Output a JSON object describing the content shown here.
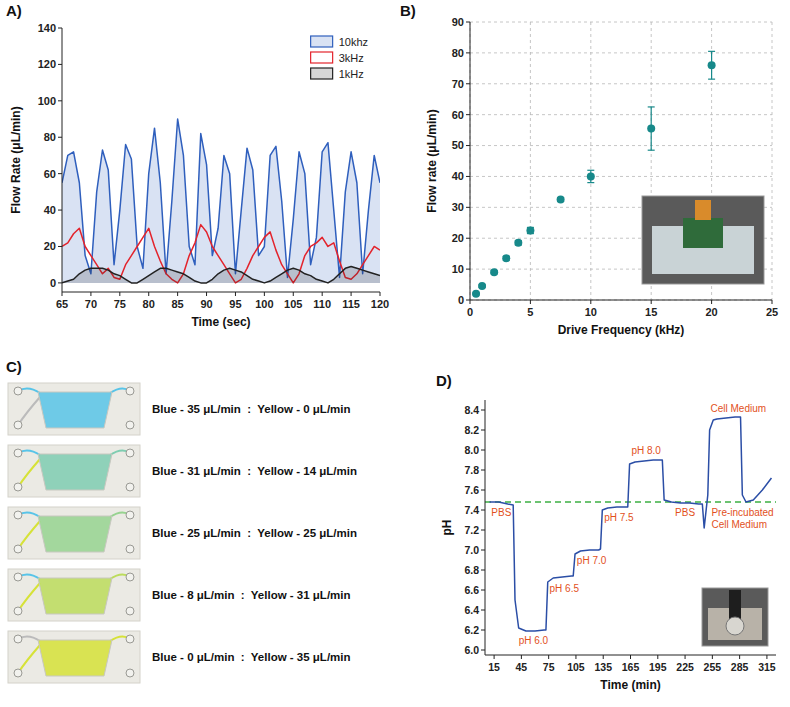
{
  "chart_data": [
    {
      "panel_label": "A)",
      "type": "line",
      "xlabel": "Time (sec)",
      "ylabel": "Flow Rate (μL/min)",
      "x": [
        65,
        66,
        67,
        68,
        69,
        70,
        71,
        72,
        73,
        74,
        75,
        76,
        77,
        78,
        79,
        80,
        81,
        82,
        83,
        84,
        85,
        86,
        87,
        88,
        89,
        90,
        91,
        92,
        93,
        94,
        95,
        96,
        97,
        98,
        99,
        100,
        101,
        102,
        103,
        104,
        105,
        106,
        107,
        108,
        109,
        110,
        111,
        112,
        113,
        114,
        115,
        116,
        117,
        118,
        119,
        120
      ],
      "xlim": [
        65,
        120
      ],
      "ylim": [
        -5,
        140
      ],
      "xticks": [
        65,
        70,
        75,
        80,
        85,
        90,
        95,
        100,
        105,
        110,
        115,
        120
      ],
      "yticks": [
        0,
        20,
        40,
        60,
        80,
        100,
        120,
        140
      ],
      "grid": false,
      "legend": "top-right",
      "series": [
        {
          "name": "10khz",
          "color": "#2f5fbd",
          "type": "area",
          "values": [
            55,
            70,
            72,
            55,
            15,
            5,
            50,
            73,
            62,
            10,
            40,
            76,
            68,
            20,
            8,
            60,
            85,
            55,
            5,
            45,
            90,
            70,
            20,
            10,
            82,
            65,
            15,
            30,
            70,
            60,
            5,
            40,
            74,
            62,
            15,
            20,
            70,
            75,
            45,
            3,
            35,
            72,
            60,
            10,
            25,
            72,
            77,
            40,
            3,
            50,
            72,
            55,
            5,
            40,
            70,
            55
          ]
        },
        {
          "name": "3kHz",
          "color": "#e3232c",
          "type": "line",
          "values": [
            20,
            22,
            27,
            30,
            20,
            15,
            10,
            5,
            8,
            3,
            2,
            10,
            15,
            20,
            25,
            30,
            20,
            12,
            5,
            2,
            0,
            5,
            15,
            22,
            32,
            28,
            20,
            15,
            10,
            5,
            0,
            2,
            8,
            15,
            20,
            25,
            28,
            18,
            10,
            5,
            0,
            5,
            15,
            20,
            22,
            25,
            20,
            22,
            12,
            3,
            2,
            5,
            10,
            15,
            20,
            18
          ]
        },
        {
          "name": "1kHz",
          "color": "#222222",
          "type": "area",
          "values": [
            0,
            1,
            2,
            5,
            7,
            8,
            8,
            8,
            7,
            5,
            4,
            2,
            0,
            0,
            2,
            4,
            6,
            8,
            8,
            7,
            6,
            5,
            3,
            1,
            0,
            0,
            2,
            5,
            7,
            8,
            7,
            6,
            4,
            2,
            1,
            0,
            1,
            3,
            5,
            7,
            8,
            7,
            5,
            4,
            2,
            1,
            0,
            2,
            5,
            8,
            9,
            8,
            7,
            6,
            5,
            4
          ]
        }
      ]
    },
    {
      "panel_label": "B)",
      "type": "scatter",
      "xlabel": "Drive Frequency (kHz)",
      "ylabel": "Flow rate (μL/min)",
      "x": [
        0.5,
        1,
        2,
        3,
        4,
        5,
        7.5,
        10,
        15,
        20
      ],
      "values": [
        2,
        4.5,
        9,
        13.5,
        18.5,
        22.5,
        32.5,
        40,
        55.5,
        76
      ],
      "errors": [
        0.3,
        0.4,
        0.5,
        0.6,
        0.7,
        1,
        0.6,
        2,
        7,
        4.5
      ],
      "color": "#17898a",
      "marker": "circle",
      "xlim": [
        0,
        25
      ],
      "ylim": [
        0,
        90
      ],
      "xticks": [
        0,
        5,
        10,
        15,
        20,
        25
      ],
      "yticks": [
        0,
        10,
        20,
        30,
        40,
        50,
        60,
        70,
        80,
        90
      ],
      "grid": true
    },
    {
      "panel_label": "D)",
      "type": "line",
      "xlabel": "Time (min)",
      "ylabel": "pH",
      "color": "#2b4ea6",
      "x": [
        10,
        20,
        30,
        36,
        38,
        42,
        50,
        60,
        70,
        72,
        74,
        80,
        90,
        100,
        102,
        104,
        110,
        120,
        130,
        132,
        134,
        140,
        150,
        160,
        162,
        164,
        170,
        180,
        190,
        198,
        200,
        202,
        210,
        220,
        230,
        240,
        244,
        246,
        250,
        252,
        256,
        260,
        270,
        280,
        286,
        288,
        292,
        300,
        310,
        320
      ],
      "values": [
        7.48,
        7.48,
        7.46,
        7.45,
        6.5,
        6.22,
        6.19,
        6.19,
        6.2,
        6.2,
        6.68,
        6.72,
        6.73,
        6.74,
        6.74,
        6.96,
        6.99,
        7,
        7,
        7.01,
        7.4,
        7.42,
        7.43,
        7.43,
        7.43,
        7.86,
        7.88,
        7.89,
        7.9,
        7.9,
        7.9,
        7.5,
        7.48,
        7.47,
        7.47,
        7.46,
        7.46,
        7.22,
        7.55,
        8.2,
        8.3,
        8.31,
        8.32,
        8.33,
        8.33,
        7.55,
        7.48,
        7.5,
        7.6,
        7.72
      ],
      "xlim": [
        5,
        325
      ],
      "ylim": [
        5.95,
        8.5
      ],
      "xticks": [
        15,
        45,
        75,
        105,
        135,
        165,
        195,
        225,
        255,
        285,
        315
      ],
      "yticks": [
        {
          "value": 6,
          "label": "6.0"
        },
        6.2,
        6.4,
        6.6,
        6.8,
        {
          "value": 7,
          "label": "7.0"
        },
        7.2,
        7.4,
        7.6,
        7.8,
        {
          "value": 8,
          "label": "8.0"
        },
        8.2,
        8.4
      ],
      "grid": false,
      "reference_line": {
        "value": 7.48,
        "color": "#3cb043",
        "line_style": "dashed"
      },
      "annotations": [
        {
          "text": "PBS",
          "x": 12,
          "y": 7.34,
          "color": "#e2501c"
        },
        {
          "text": "pH 6.0",
          "x": 42,
          "y": 6.06,
          "color": "#e2501c"
        },
        {
          "text": "pH 6.5",
          "x": 76,
          "y": 6.58,
          "color": "#e2501c"
        },
        {
          "text": "pH 7.0",
          "x": 106,
          "y": 6.86,
          "color": "#e2501c"
        },
        {
          "text": "pH 7.5",
          "x": 136,
          "y": 7.29,
          "color": "#e2501c"
        },
        {
          "text": "pH 8.0",
          "x": 166,
          "y": 7.96,
          "color": "#e2501c"
        },
        {
          "text": "PBS",
          "x": 214,
          "y": 7.34,
          "color": "#e2501c"
        },
        {
          "text": "Cell Medium",
          "x": 253,
          "y": 8.38,
          "color": "#e2501c"
        },
        {
          "text": "Pre-incubated Cell Medium",
          "x": 254,
          "y": 7.34,
          "color": "#e2501c"
        }
      ]
    }
  ],
  "panel_c": {
    "panel_label": "C)",
    "rows": [
      {
        "text": "Blue - 35 μL/min  :  Yellow - 0 μL/min",
        "blue": 35,
        "yellow": 0
      },
      {
        "text": "Blue - 31 μL/min  :  Yellow - 14 μL/min",
        "blue": 31,
        "yellow": 14
      },
      {
        "text": "Blue - 25 μL/min  :  Yellow - 25 μL/min",
        "blue": 25,
        "yellow": 25
      },
      {
        "text": "Blue - 8 μL/min  :  Yellow - 31 μL/min",
        "blue": 8,
        "yellow": 31
      },
      {
        "text": "Blue - 0 μL/min  :  Yellow - 35 μL/min",
        "blue": 0,
        "yellow": 35
      }
    ]
  }
}
